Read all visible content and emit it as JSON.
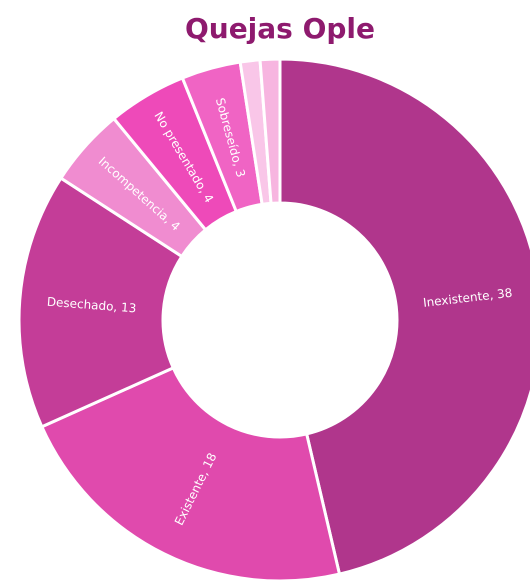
{
  "chart_data": {
    "type": "donut",
    "title": "Quejas Ople",
    "labels": [
      "Inexistente, 38",
      "Existente, 18",
      "Desechado, 13",
      "Incompetencia, 4",
      "No presentado, 4",
      "Sobreseído, 3",
      null,
      null
    ],
    "values": [
      38,
      18,
      13,
      4,
      4,
      3,
      1,
      1
    ],
    "colors": [
      "#b0368c",
      "#e04aad",
      "#c43d98",
      "#f08cd0",
      "#ee4ab9",
      "#f064c4",
      "#f9c6e8",
      "#f7b5e0"
    ]
  }
}
